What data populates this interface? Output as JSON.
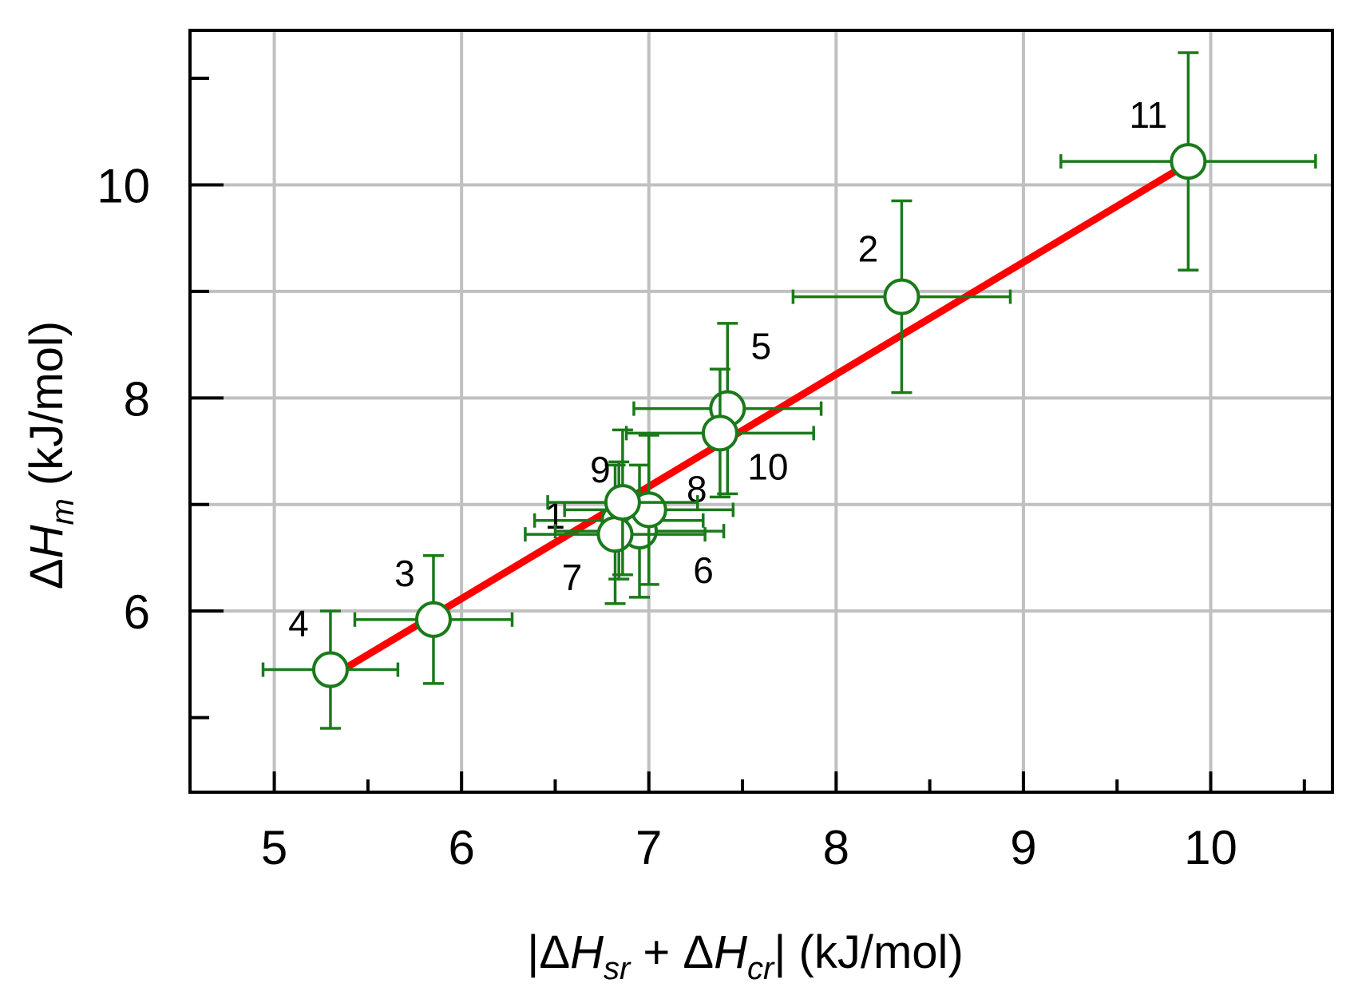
{
  "chart_data": {
    "type": "scatter",
    "xlabel": "|ΔHsr + ΔHcr| (kJ/mol)",
    "xlabel_parts": {
      "open": "|",
      "delta1": "Δ",
      "h1": "H",
      "sub1": "sr",
      "plus": " + ",
      "delta2": "Δ",
      "h2": "H",
      "sub2": "cr",
      "close": "|",
      "unit": " (kJ/mol)"
    },
    "ylabel": "ΔHm (kJ/mol)",
    "ylabel_parts": {
      "delta": "Δ",
      "h": "H",
      "sub": "m",
      "unit": " (kJ/mol)"
    },
    "xlim": [
      4.55,
      10.65
    ],
    "ylim": [
      4.3,
      11.45
    ],
    "xticks": [
      5,
      6,
      7,
      8,
      9,
      10
    ],
    "xtick_labels": [
      "5",
      "6",
      "7",
      "8",
      "9",
      "10"
    ],
    "xminor": [
      5.5,
      6.5,
      7.5,
      8.5,
      9.5,
      10.5
    ],
    "yticks": [
      6,
      8,
      10
    ],
    "ytick_labels": [
      "6",
      "8",
      "10"
    ],
    "yminor": [
      5,
      7,
      9,
      11
    ],
    "xgrid": [
      5,
      6,
      7,
      8,
      9,
      10
    ],
    "ygrid": [
      6,
      7,
      8,
      9,
      10
    ],
    "grid": true,
    "marker": "open circle",
    "colors": {
      "points": "#1a7a1a",
      "fit": "#ff0000",
      "grid": "#c0c0c0",
      "axes": "#000000"
    },
    "fit_line": {
      "x": [
        5.3,
        9.88
      ],
      "y": [
        5.38,
        10.2
      ]
    },
    "points": [
      {
        "label": "1",
        "x": 6.84,
        "y": 6.85,
        "xerr": 0.45,
        "yerr": 0.55
      },
      {
        "label": "2",
        "x": 8.35,
        "y": 8.95,
        "xerr": 0.58,
        "yerr": 0.9
      },
      {
        "label": "3",
        "x": 5.85,
        "y": 5.92,
        "xerr": 0.42,
        "yerr": 0.6
      },
      {
        "label": "4",
        "x": 5.3,
        "y": 5.45,
        "xerr": 0.36,
        "yerr": 0.55
      },
      {
        "label": "5",
        "x": 7.42,
        "y": 7.9,
        "xerr": 0.5,
        "yerr": 0.8
      },
      {
        "label": "6",
        "x": 6.95,
        "y": 6.75,
        "xerr": 0.45,
        "yerr": 0.62
      },
      {
        "label": "7",
        "x": 6.82,
        "y": 6.72,
        "xerr": 0.48,
        "yerr": 0.65
      },
      {
        "label": "8",
        "x": 7.0,
        "y": 6.95,
        "xerr": 0.45,
        "yerr": 0.7
      },
      {
        "label": "9",
        "x": 6.86,
        "y": 7.02,
        "xerr": 0.4,
        "yerr": 0.68
      },
      {
        "label": "10",
        "x": 7.38,
        "y": 7.67,
        "xerr": 0.5,
        "yerr": 0.6
      },
      {
        "label": "11",
        "x": 9.88,
        "y": 10.22,
        "xerr": 0.68,
        "yerr": 1.02
      }
    ]
  }
}
